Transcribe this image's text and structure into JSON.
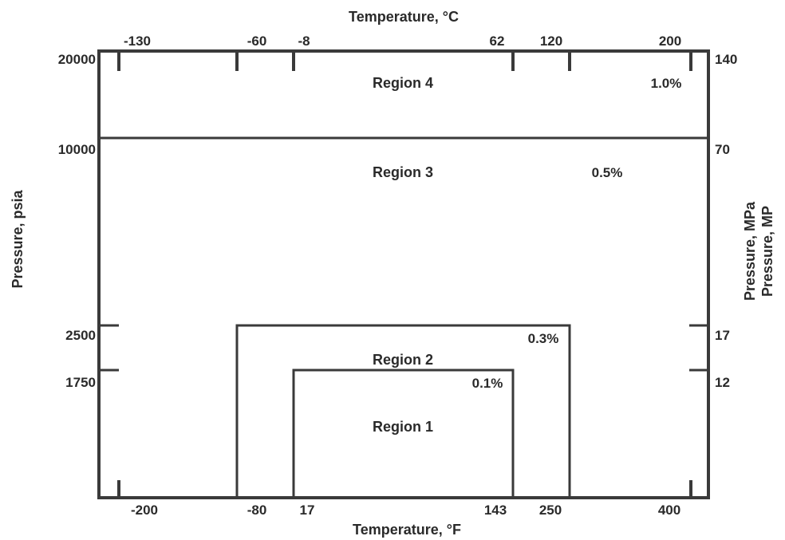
{
  "top_axis": {
    "title": "Temperature, °C",
    "ticks": [
      "-130",
      "-60",
      "-8",
      "62",
      "120",
      "200"
    ]
  },
  "bottom_axis": {
    "title": "Temperature, °F",
    "ticks": [
      "-200",
      "-80",
      "17",
      "143",
      "250",
      "400"
    ]
  },
  "left_axis": {
    "title": "Pressure, psia",
    "ticks": [
      "20000",
      "10000",
      "2500",
      "1750"
    ]
  },
  "right_axis": {
    "title_line1": "Pressure, MPa",
    "title_line2": "Pressure, MP",
    "ticks": [
      "140",
      "70",
      "17",
      "12"
    ]
  },
  "regions": [
    {
      "label": "Region 4",
      "percent": "1.0%"
    },
    {
      "label": "Region 3",
      "percent": "0.5%"
    },
    {
      "label": "Region 2",
      "percent": "0.3%"
    },
    {
      "label": "Region 1",
      "percent": "0.1%"
    }
  ],
  "colors": {
    "line": "#3a3a3a",
    "text": "#2a2a2a",
    "background": "#ffffff"
  }
}
